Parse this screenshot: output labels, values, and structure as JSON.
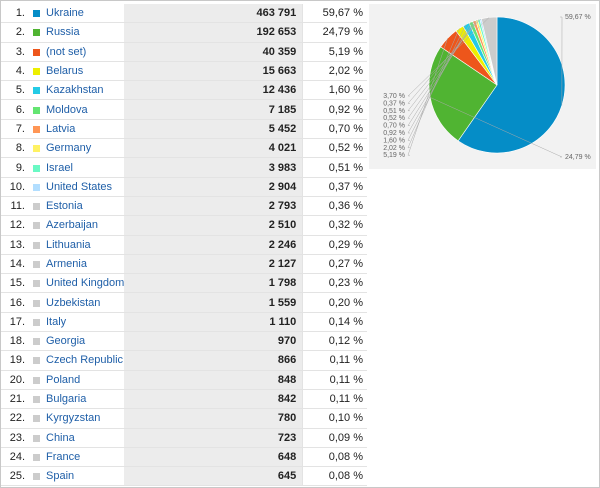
{
  "rows": [
    {
      "rank": "1.",
      "country": "Ukraine",
      "visits": "463 791",
      "percent": "59,67 %",
      "color": "#058dc7"
    },
    {
      "rank": "2.",
      "country": "Russia",
      "visits": "192 653",
      "percent": "24,79 %",
      "color": "#50b432"
    },
    {
      "rank": "3.",
      "country": "(not set)",
      "visits": "40 359",
      "percent": "5,19 %",
      "color": "#ed561b"
    },
    {
      "rank": "4.",
      "country": "Belarus",
      "visits": "15 663",
      "percent": "2,02 %",
      "color": "#edef00"
    },
    {
      "rank": "5.",
      "country": "Kazakhstan",
      "visits": "12 436",
      "percent": "1,60 %",
      "color": "#24cbe5"
    },
    {
      "rank": "6.",
      "country": "Moldova",
      "visits": "7 185",
      "percent": "0,92 %",
      "color": "#64e572"
    },
    {
      "rank": "7.",
      "country": "Latvia",
      "visits": "5 452",
      "percent": "0,70 %",
      "color": "#ff9655"
    },
    {
      "rank": "8.",
      "country": "Germany",
      "visits": "4 021",
      "percent": "0,52 %",
      "color": "#fff263"
    },
    {
      "rank": "9.",
      "country": "Israel",
      "visits": "3 983",
      "percent": "0,51 %",
      "color": "#6af9c4"
    },
    {
      "rank": "10.",
      "country": "United States",
      "visits": "2 904",
      "percent": "0,37 %",
      "color": "#b2deff"
    },
    {
      "rank": "11.",
      "country": "Estonia",
      "visits": "2 793",
      "percent": "0,36 %",
      "color": "#cccccc"
    },
    {
      "rank": "12.",
      "country": "Azerbaijan",
      "visits": "2 510",
      "percent": "0,32 %",
      "color": "#cccccc"
    },
    {
      "rank": "13.",
      "country": "Lithuania",
      "visits": "2 246",
      "percent": "0,29 %",
      "color": "#cccccc"
    },
    {
      "rank": "14.",
      "country": "Armenia",
      "visits": "2 127",
      "percent": "0,27 %",
      "color": "#cccccc"
    },
    {
      "rank": "15.",
      "country": "United Kingdom",
      "visits": "1 798",
      "percent": "0,23 %",
      "color": "#cccccc"
    },
    {
      "rank": "16.",
      "country": "Uzbekistan",
      "visits": "1 559",
      "percent": "0,20 %",
      "color": "#cccccc"
    },
    {
      "rank": "17.",
      "country": "Italy",
      "visits": "1 110",
      "percent": "0,14 %",
      "color": "#cccccc"
    },
    {
      "rank": "18.",
      "country": "Georgia",
      "visits": "970",
      "percent": "0,12 %",
      "color": "#cccccc"
    },
    {
      "rank": "19.",
      "country": "Czech Republic",
      "visits": "866",
      "percent": "0,11 %",
      "color": "#cccccc"
    },
    {
      "rank": "20.",
      "country": "Poland",
      "visits": "848",
      "percent": "0,11 %",
      "color": "#cccccc"
    },
    {
      "rank": "21.",
      "country": "Bulgaria",
      "visits": "842",
      "percent": "0,11 %",
      "color": "#cccccc"
    },
    {
      "rank": "22.",
      "country": "Kyrgyzstan",
      "visits": "780",
      "percent": "0,10 %",
      "color": "#cccccc"
    },
    {
      "rank": "23.",
      "country": "China",
      "visits": "723",
      "percent": "0,09 %",
      "color": "#cccccc"
    },
    {
      "rank": "24.",
      "country": "France",
      "visits": "648",
      "percent": "0,08 %",
      "color": "#cccccc"
    },
    {
      "rank": "25.",
      "country": "Spain",
      "visits": "645",
      "percent": "0,08 %",
      "color": "#cccccc"
    }
  ],
  "chart_data": {
    "type": "pie",
    "slices": [
      {
        "label": "59,67 %",
        "value": 59.67,
        "color": "#058dc7"
      },
      {
        "label": "24,79 %",
        "value": 24.79,
        "color": "#50b432"
      },
      {
        "label": "5,19 %",
        "value": 5.19,
        "color": "#ed561b"
      },
      {
        "label": "2,02 %",
        "value": 2.02,
        "color": "#edef00"
      },
      {
        "label": "1,60 %",
        "value": 1.6,
        "color": "#24cbe5"
      },
      {
        "label": "0,92 %",
        "value": 0.92,
        "color": "#64e572"
      },
      {
        "label": "0,70 %",
        "value": 0.7,
        "color": "#ff9655"
      },
      {
        "label": "0,52 %",
        "value": 0.52,
        "color": "#fff263"
      },
      {
        "label": "0,51 %",
        "value": 0.51,
        "color": "#6af9c4"
      },
      {
        "label": "0,37 %",
        "value": 0.37,
        "color": "#b2deff"
      },
      {
        "label": "3,70 %",
        "value": 3.7,
        "color": "#cccccc"
      }
    ]
  }
}
